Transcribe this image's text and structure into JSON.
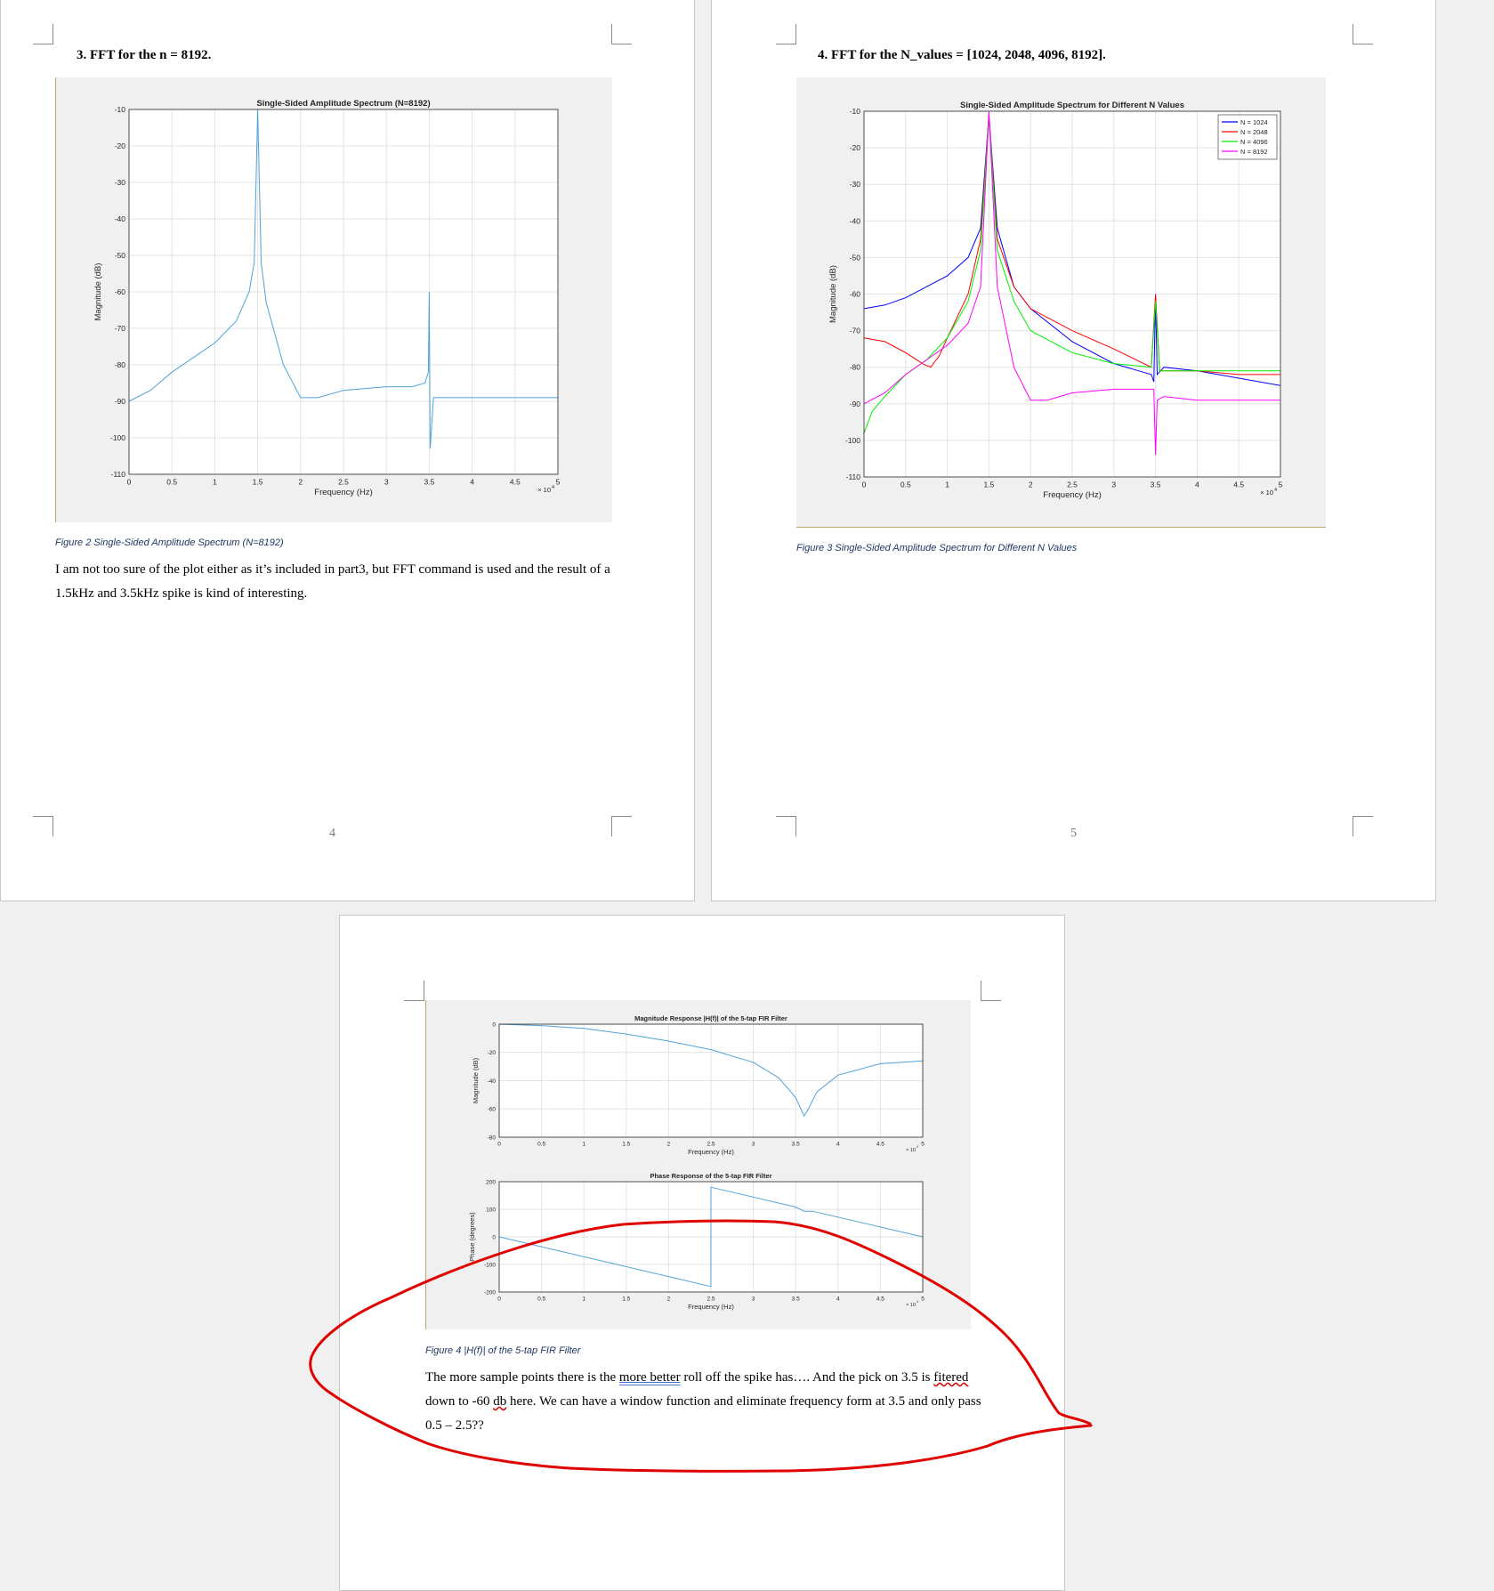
{
  "colors": {
    "spectrum": "#4fa3d9",
    "n1024": "#0000ff",
    "n2048": "#ff0000",
    "n4096": "#00ee00",
    "n8192": "#ff00ff",
    "annotation": "#e00000"
  },
  "page4": {
    "heading": "3.  FFT for the n = 8192.",
    "caption": "Figure 2 Single-Sided Amplitude Spectrum (N=8192)",
    "para": "I am not too sure of the plot either as it’s included in part3, but FFT command is used and the result of a 1.5kHz and 3.5kHz spike is kind of interesting.",
    "page_number": "4"
  },
  "page5": {
    "heading": "4.  FFT for the N_values = [1024, 2048, 4096, 8192].",
    "caption": "Figure 3 Single-Sided Amplitude Spectrum for Different N Values",
    "page_number": "5"
  },
  "page6": {
    "caption": "Figure 4 |H(f)| of the 5-tap FIR Filter",
    "para_1": "The more sample points there is the ",
    "para_underlined": "more better",
    "para_2": " roll off the spike has…. And the pick on 3.5 is ",
    "para_squiggle": "fitered",
    "para_3": " down to -60 ",
    "para_squiggle2": "db",
    "para_4": " here. We can have a window function and eliminate frequency form at 3.5 and only pass 0.5 – 2.5??"
  },
  "chart_data": [
    {
      "type": "line",
      "title": "Single-Sided Amplitude Spectrum (N=8192)",
      "xlabel": "Frequency (Hz)",
      "ylabel": "Magnitude (dB)",
      "xlim": [
        0,
        50000
      ],
      "ylim": [
        -110,
        -10
      ],
      "x_ticks": [
        "0",
        "0.5",
        "1",
        "1.5",
        "2",
        "2.5",
        "3",
        "3.5",
        "4",
        "4.5",
        "5"
      ],
      "x_multiplier": "× 10",
      "x_multiplier_exp": "4",
      "y_ticks": [
        "-10",
        "-20",
        "-30",
        "-40",
        "-50",
        "-60",
        "-70",
        "-80",
        "-90",
        "-100",
        "-110"
      ],
      "grid": true,
      "series": [
        {
          "x": [
            0,
            2500,
            5000,
            7500,
            10000,
            12500,
            14000,
            14600,
            15000,
            15400,
            16000,
            18000,
            20000,
            22000,
            25000,
            30000,
            33000,
            34500,
            34900,
            35000,
            35100,
            35500,
            40000,
            45000,
            50000
          ],
          "y": [
            -90,
            -87,
            -82,
            -78,
            -74,
            -68,
            -60,
            -52,
            -10,
            -52,
            -63,
            -80,
            -89,
            -89,
            -87,
            -86,
            -86,
            -85,
            -82,
            -60,
            -103,
            -89,
            -89,
            -89,
            -89
          ]
        }
      ]
    },
    {
      "type": "line",
      "title": "Single-Sided Amplitude Spectrum for Different N Values",
      "xlabel": "Frequency (Hz)",
      "ylabel": "Magnitude (dB)",
      "xlim": [
        0,
        50000
      ],
      "ylim": [
        -110,
        -10
      ],
      "x_ticks": [
        "0",
        "0.5",
        "1",
        "1.5",
        "2",
        "2.5",
        "3",
        "3.5",
        "4",
        "4.5",
        "5"
      ],
      "x_multiplier": "× 10",
      "x_multiplier_exp": "4",
      "y_ticks": [
        "-10",
        "-20",
        "-30",
        "-40",
        "-50",
        "-60",
        "-70",
        "-80",
        "-90",
        "-100",
        "-110"
      ],
      "grid": true,
      "legend": "top-right",
      "series": [
        {
          "name": "N = 1024",
          "x": [
            0,
            2500,
            5000,
            7500,
            10000,
            12500,
            14000,
            15000,
            16000,
            18000,
            20000,
            25000,
            30000,
            33000,
            34500,
            34800,
            35000,
            35200,
            36000,
            40000,
            45000,
            50000
          ],
          "y": [
            -64,
            -63,
            -61,
            -58,
            -55,
            -50,
            -42,
            -11,
            -42,
            -58,
            -64,
            -73,
            -79,
            -81,
            -82,
            -84,
            -61,
            -82,
            -80,
            -81,
            -83,
            -85
          ]
        },
        {
          "name": "N = 2048",
          "x": [
            0,
            2500,
            5000,
            7000,
            8000,
            9000,
            10000,
            12500,
            14000,
            15000,
            16000,
            18000,
            20000,
            25000,
            30000,
            34500,
            35000,
            35500,
            40000,
            45000,
            50000
          ],
          "y": [
            -72,
            -73,
            -76,
            -79,
            -80,
            -77,
            -72,
            -60,
            -45,
            -11,
            -45,
            -58,
            -64,
            -70,
            -75,
            -80,
            -60,
            -81,
            -81,
            -82,
            -82
          ]
        },
        {
          "name": "N = 4096",
          "x": [
            0,
            1000,
            2500,
            5000,
            7500,
            10000,
            12500,
            14000,
            15000,
            16000,
            18000,
            20000,
            25000,
            30000,
            34500,
            35000,
            35500,
            40000,
            45000,
            50000
          ],
          "y": [
            -98,
            -92,
            -88,
            -82,
            -78,
            -72,
            -62,
            -48,
            -11,
            -48,
            -62,
            -70,
            -76,
            -79,
            -80,
            -62,
            -81,
            -81,
            -81,
            -81
          ]
        },
        {
          "name": "N = 8192",
          "x": [
            0,
            2500,
            5000,
            7500,
            10000,
            12500,
            14000,
            15000,
            16000,
            18000,
            20000,
            22000,
            25000,
            30000,
            34800,
            35000,
            35200,
            36000,
            40000,
            45000,
            50000
          ],
          "y": [
            -90,
            -87,
            -82,
            -78,
            -74,
            -68,
            -58,
            -10,
            -58,
            -80,
            -89,
            -89,
            -87,
            -86,
            -86,
            -104,
            -89,
            -88,
            -89,
            -89,
            -89
          ]
        }
      ]
    },
    {
      "type": "line",
      "title": "Magnitude Response |H(f)| of the 5-tap FIR Filter",
      "xlabel": "Frequency (Hz)",
      "ylabel": "Magnitude (dB)",
      "xlim": [
        0,
        50000
      ],
      "ylim": [
        -80,
        0
      ],
      "x_ticks": [
        "0",
        "0.5",
        "1",
        "1.5",
        "2",
        "2.5",
        "3",
        "3.5",
        "4",
        "4.5",
        "5"
      ],
      "x_multiplier": "× 10",
      "x_multiplier_exp": "4",
      "y_ticks": [
        "0",
        "-20",
        "-40",
        "-60",
        "-80"
      ],
      "grid": true,
      "series": [
        {
          "x": [
            0,
            5000,
            10000,
            15000,
            20000,
            25000,
            30000,
            33000,
            35000,
            36000,
            36500,
            37500,
            40000,
            45000,
            50000
          ],
          "y": [
            0,
            -1,
            -3,
            -7,
            -12,
            -18,
            -27,
            -38,
            -52,
            -65,
            -60,
            -48,
            -36,
            -28,
            -26
          ]
        }
      ]
    },
    {
      "type": "line",
      "title": "Phase Response of the 5-tap FIR Filter",
      "xlabel": "Frequency (Hz)",
      "ylabel": "Phase (degrees)",
      "xlim": [
        0,
        50000
      ],
      "ylim": [
        -200,
        200
      ],
      "x_ticks": [
        "0",
        "0.5",
        "1",
        "1.5",
        "2",
        "2.5",
        "3",
        "3.5",
        "4",
        "4.5",
        "5"
      ],
      "x_multiplier": "× 10",
      "x_multiplier_exp": "4",
      "y_ticks": [
        "200",
        "100",
        "0",
        "-100",
        "-200"
      ],
      "grid": true,
      "series": [
        {
          "x": [
            0,
            24990,
            25000,
            35000,
            36000,
            37000,
            50000
          ],
          "y": [
            0,
            -180,
            180,
            108,
            93,
            93,
            0
          ]
        }
      ]
    }
  ]
}
